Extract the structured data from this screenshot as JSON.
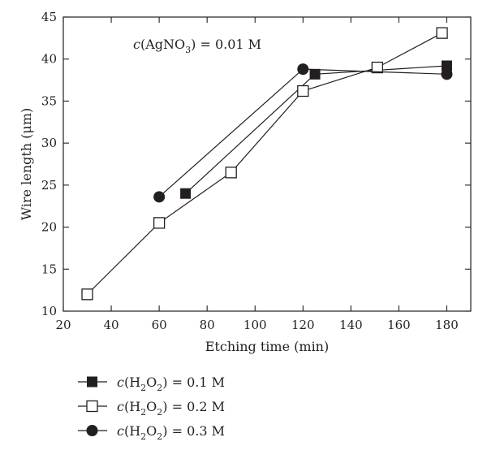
{
  "chart_data": {
    "type": "line",
    "annotation": {
      "text": "c(AgNO3) = 0.01 M",
      "parts": {
        "c": "c",
        "open": "(AgNO",
        "sub": "3",
        "close": ") = 0.01 M"
      }
    },
    "xlabel": "Etching time (min)",
    "ylabel": "Wire length (μm)",
    "xlim": [
      20,
      190
    ],
    "ylim": [
      10,
      45
    ],
    "xticks": [
      20,
      40,
      60,
      80,
      100,
      120,
      140,
      160,
      180
    ],
    "yticks": [
      10,
      15,
      20,
      25,
      30,
      35,
      40,
      45
    ],
    "grid": false,
    "legend_placement": "bottom-left, below plot",
    "series": [
      {
        "name": "c(H2O2) = 0.1 M",
        "label_parts": {
          "c": "c",
          "open": "(H",
          "sub1": "2",
          "mid": "O",
          "sub2": "2",
          "close": ") = 0.1 M"
        },
        "marker": "filled-square",
        "points": [
          [
            71,
            24.0
          ],
          [
            125,
            38.2
          ],
          [
            180,
            39.2
          ]
        ]
      },
      {
        "name": "c(H2O2) = 0.2 M",
        "label_parts": {
          "c": "c",
          "open": "(H",
          "sub1": "2",
          "mid": "O",
          "sub2": "2",
          "close": ") = 0.2 M"
        },
        "marker": "open-square",
        "points": [
          [
            30,
            12.0
          ],
          [
            60,
            20.5
          ],
          [
            90,
            26.5
          ],
          [
            120,
            36.2
          ],
          [
            151,
            39.0
          ],
          [
            178,
            43.1
          ]
        ]
      },
      {
        "name": "c(H2O2) = 0.3 M",
        "label_parts": {
          "c": "c",
          "open": "(H",
          "sub1": "2",
          "mid": "O",
          "sub2": "2",
          "close": ") = 0.3 M"
        },
        "marker": "filled-circle",
        "points": [
          [
            60,
            23.6
          ],
          [
            120,
            38.8
          ],
          [
            180,
            38.2
          ]
        ]
      }
    ]
  }
}
